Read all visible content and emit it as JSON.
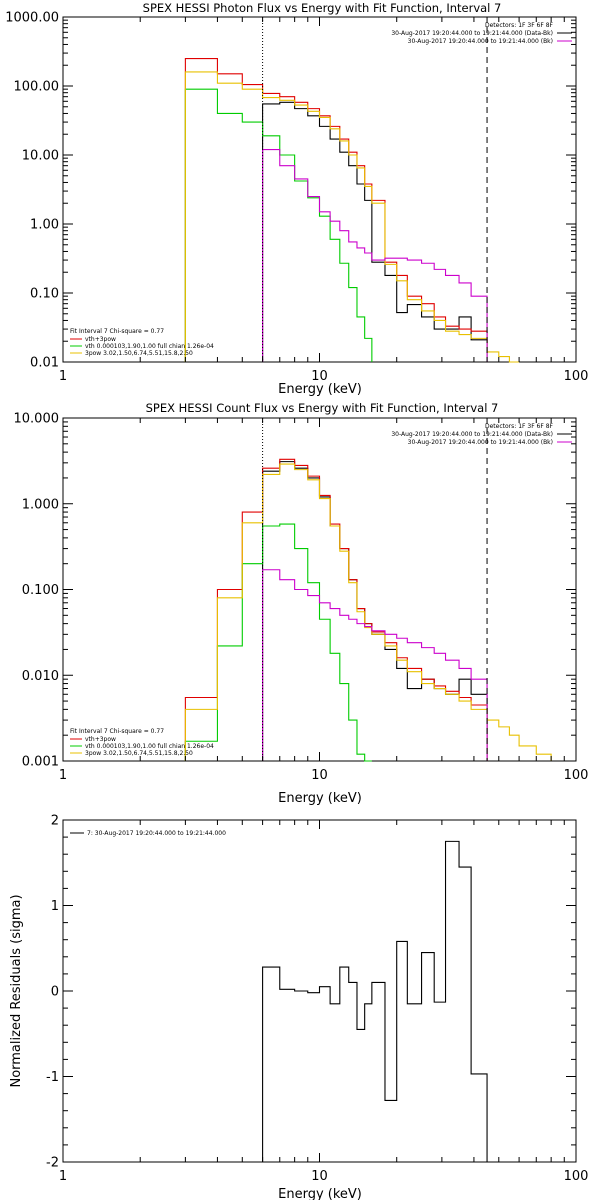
{
  "chart_data": [
    {
      "type": "line",
      "title": "SPEX HESSI Photon Flux vs Energy with Fit Function, Interval 7",
      "xlabel": "Energy (keV)",
      "ylabel": "",
      "xscale": "log",
      "yscale": "log",
      "xlim": [
        1,
        100
      ],
      "ylim": [
        0.01,
        1000
      ],
      "xtick_labels": [
        "1",
        "10",
        "100"
      ],
      "ytick_labels": [
        "0.01",
        "0.10",
        "1.00",
        "10.00",
        "100.00",
        "1000.00"
      ],
      "ytick_values": [
        0.01,
        0.1,
        1,
        10,
        100,
        1000
      ],
      "vlines": [
        {
          "x": 6.0,
          "style": "dotted"
        },
        {
          "x": 45.0,
          "style": "dashed"
        }
      ],
      "info_lines": [
        "Detectors: 1F 3F 6F 8F",
        "30-Aug-2017 19:20:44.000 to 19:21:44.000 (Data-Bk)",
        "30-Aug-2017 19:20:44.000 to 19:21:44.000 (Bk)"
      ],
      "fit_lines": [
        "Fit Interval 7   Chi-square = 0.77",
        "vth+3pow",
        "vth 0.000103,1.90,1.00  full chian 1.26e-04",
        "3pow 3.02,1.50,6.74,5.51,15.8,2.50"
      ],
      "series": [
        {
          "name": "data",
          "color": "#000000",
          "edges": [
            6,
            7,
            8,
            9,
            10,
            11,
            12,
            13,
            14,
            15,
            16,
            18,
            20,
            22,
            25,
            28,
            31,
            35,
            39,
            45
          ],
          "values": [
            55,
            58,
            47,
            37,
            26,
            17,
            11,
            7,
            3.8,
            2.2,
            0.28,
            0.18,
            0.052,
            0.068,
            0.045,
            0.03,
            0.03,
            0.045,
            0.021
          ]
        },
        {
          "name": "vth+3pow",
          "color": "#e00000",
          "edges": [
            3,
            4,
            5,
            6,
            7,
            8,
            9,
            10,
            11,
            12,
            13,
            14,
            15,
            16,
            18,
            20,
            22,
            25,
            28,
            31,
            35,
            39,
            45
          ],
          "values": [
            250,
            150,
            105,
            78,
            70,
            58,
            47,
            37,
            26,
            17,
            11,
            7,
            3.8,
            2.2,
            0.28,
            0.18,
            0.09,
            0.07,
            0.045,
            0.033,
            0.03,
            0.028,
            0.018
          ]
        },
        {
          "name": "vth",
          "color": "#00cc00",
          "edges": [
            3,
            4,
            5,
            6,
            7,
            8,
            9,
            10,
            11,
            12,
            13,
            14,
            15,
            16
          ],
          "values": [
            90,
            40,
            30,
            19,
            10,
            4.2,
            2.4,
            1.3,
            0.6,
            0.27,
            0.12,
            0.045,
            0.022
          ]
        },
        {
          "name": "3pow",
          "color": "#e8c000",
          "edges": [
            3,
            4,
            5,
            6,
            7,
            8,
            9,
            10,
            11,
            12,
            13,
            14,
            15,
            16,
            18,
            20,
            22,
            25,
            28,
            31,
            35,
            39,
            45,
            50,
            55,
            60
          ],
          "values": [
            160,
            110,
            90,
            68,
            62,
            53,
            43,
            35,
            24,
            16,
            10,
            6.5,
            3.5,
            2.0,
            0.26,
            0.15,
            0.08,
            0.055,
            0.04,
            0.028,
            0.025,
            0.022,
            0.014,
            0.012,
            0.01
          ]
        },
        {
          "name": "background",
          "color": "#cc00cc",
          "edges": [
            6,
            7,
            8,
            9,
            10,
            11,
            12,
            13,
            14,
            15,
            16,
            18,
            20,
            22,
            25,
            28,
            31,
            35,
            39,
            45
          ],
          "values": [
            12,
            7,
            4.5,
            2.5,
            1.5,
            1.1,
            0.8,
            0.55,
            0.45,
            0.38,
            0.3,
            0.32,
            0.32,
            0.3,
            0.27,
            0.22,
            0.18,
            0.14,
            0.09
          ]
        }
      ]
    },
    {
      "type": "line",
      "title": "SPEX HESSI Count Flux vs Energy with Fit Function, Interval 7",
      "xlabel": "Energy (keV)",
      "ylabel": "",
      "xscale": "log",
      "yscale": "log",
      "xlim": [
        1,
        100
      ],
      "ylim": [
        0.001,
        10
      ],
      "xtick_labels": [
        "1",
        "10",
        "100"
      ],
      "ytick_labels": [
        "0.001",
        "0.010",
        "0.100",
        "1.000",
        "10.000"
      ],
      "ytick_values": [
        0.001,
        0.01,
        0.1,
        1,
        10
      ],
      "vlines": [
        {
          "x": 6.0,
          "style": "dotted"
        },
        {
          "x": 45.0,
          "style": "dashed"
        }
      ],
      "info_lines": [
        "Detectors: 1F 3F 6F 8F",
        "30-Aug-2017 19:20:44.000 to 19:21:44.000 (Data-Bk)",
        "30-Aug-2017 19:20:44.000 to 19:21:44.000 (Bk)"
      ],
      "fit_lines": [
        "Fit Interval 7   Chi-square = 0.77",
        "vth+3pow",
        "vth 0.000103,1.90,1.00  full chian 1.26e-04",
        "3pow 3.02,1.50,6.74,5.51,15.8,2.50"
      ],
      "series": [
        {
          "name": "data",
          "color": "#000000",
          "edges": [
            6,
            7,
            8,
            9,
            10,
            11,
            12,
            13,
            14,
            15,
            16,
            18,
            20,
            22,
            25,
            28,
            31,
            35,
            39,
            45
          ],
          "values": [
            2.4,
            3.1,
            2.6,
            2.0,
            1.2,
            0.55,
            0.3,
            0.13,
            0.06,
            0.04,
            0.03,
            0.02,
            0.012,
            0.007,
            0.009,
            0.007,
            0.006,
            0.009,
            0.006
          ]
        },
        {
          "name": "vth+3pow",
          "color": "#e00000",
          "edges": [
            3,
            4,
            5,
            6,
            7,
            8,
            9,
            10,
            11,
            12,
            13,
            14,
            15,
            16,
            18,
            20,
            22,
            25,
            28,
            31,
            35,
            39,
            45
          ],
          "values": [
            0.0055,
            0.1,
            0.8,
            2.6,
            3.3,
            2.8,
            2.1,
            1.25,
            0.58,
            0.3,
            0.13,
            0.06,
            0.04,
            0.032,
            0.024,
            0.016,
            0.012,
            0.009,
            0.0075,
            0.0065,
            0.0055,
            0.0045
          ]
        },
        {
          "name": "vth",
          "color": "#00cc00",
          "edges": [
            3,
            4,
            5,
            6,
            7,
            8,
            9,
            10,
            11,
            12,
            13,
            14,
            15,
            16
          ],
          "values": [
            0.0017,
            0.022,
            0.2,
            0.55,
            0.58,
            0.3,
            0.12,
            0.045,
            0.018,
            0.008,
            0.003,
            0.0012,
            0.001
          ]
        },
        {
          "name": "3pow",
          "color": "#e8c000",
          "edges": [
            3,
            4,
            5,
            6,
            7,
            8,
            9,
            10,
            11,
            12,
            13,
            14,
            15,
            16,
            18,
            20,
            22,
            25,
            28,
            31,
            35,
            39,
            45,
            50,
            55,
            60,
            70,
            80
          ],
          "values": [
            0.004,
            0.08,
            0.6,
            2.2,
            2.9,
            2.5,
            1.9,
            1.15,
            0.55,
            0.28,
            0.12,
            0.055,
            0.036,
            0.03,
            0.022,
            0.015,
            0.011,
            0.008,
            0.007,
            0.006,
            0.005,
            0.004,
            0.003,
            0.0025,
            0.002,
            0.0015,
            0.0012
          ]
        },
        {
          "name": "background",
          "color": "#cc00cc",
          "edges": [
            6,
            7,
            8,
            9,
            10,
            11,
            12,
            13,
            14,
            15,
            16,
            18,
            20,
            22,
            25,
            28,
            31,
            35,
            39,
            45
          ],
          "values": [
            0.17,
            0.13,
            0.1,
            0.085,
            0.07,
            0.06,
            0.05,
            0.045,
            0.04,
            0.037,
            0.033,
            0.03,
            0.027,
            0.024,
            0.021,
            0.018,
            0.015,
            0.012,
            0.009
          ]
        }
      ]
    },
    {
      "type": "line",
      "title": "",
      "xlabel": "Energy (keV)",
      "ylabel": "Normalized Residuals (sigma)",
      "xscale": "log",
      "yscale": "linear",
      "xlim": [
        1,
        100
      ],
      "ylim": [
        -2,
        2
      ],
      "xtick_labels": [
        "1",
        "10",
        "100"
      ],
      "ytick_labels": [
        "-2",
        "-1",
        "0",
        "1",
        "2"
      ],
      "ytick_values": [
        -2,
        -1,
        0,
        1,
        2
      ],
      "legend_label": "7: 30-Aug-2017 19:20:44.000 to 19:21:44.000",
      "series": [
        {
          "name": "residuals",
          "color": "#000000",
          "edges": [
            6,
            7,
            8,
            9,
            10,
            11,
            12,
            13,
            14,
            15,
            16,
            18,
            20,
            22,
            25,
            28,
            31,
            35,
            39,
            45
          ],
          "values": [
            0.28,
            0.02,
            0.0,
            -0.02,
            0.05,
            -0.15,
            0.28,
            0.1,
            -0.45,
            -0.15,
            0.1,
            -1.28,
            0.58,
            -0.15,
            0.45,
            -0.13,
            1.75,
            1.45,
            -0.97
          ]
        }
      ]
    }
  ]
}
